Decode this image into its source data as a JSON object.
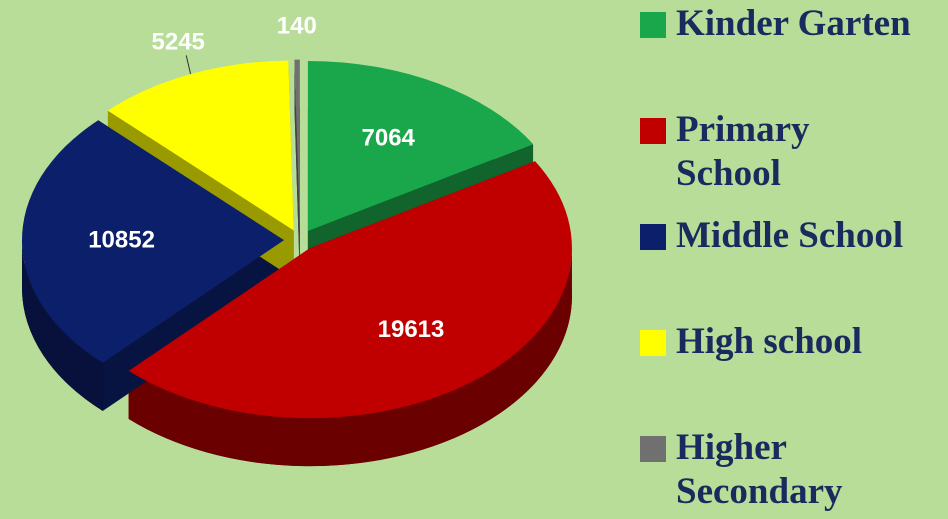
{
  "chart_data": {
    "type": "pie",
    "categories": [
      "Kinder Garten",
      "Primary School",
      "Middle School",
      "High school",
      "Higher Secondary"
    ],
    "values": [
      7064,
      19613,
      10852,
      5245,
      140
    ],
    "colors": [
      "#1aa64a",
      "#c00000",
      "#0c1f6b",
      "#ffff00",
      "#707070"
    ],
    "legend": "right"
  }
}
